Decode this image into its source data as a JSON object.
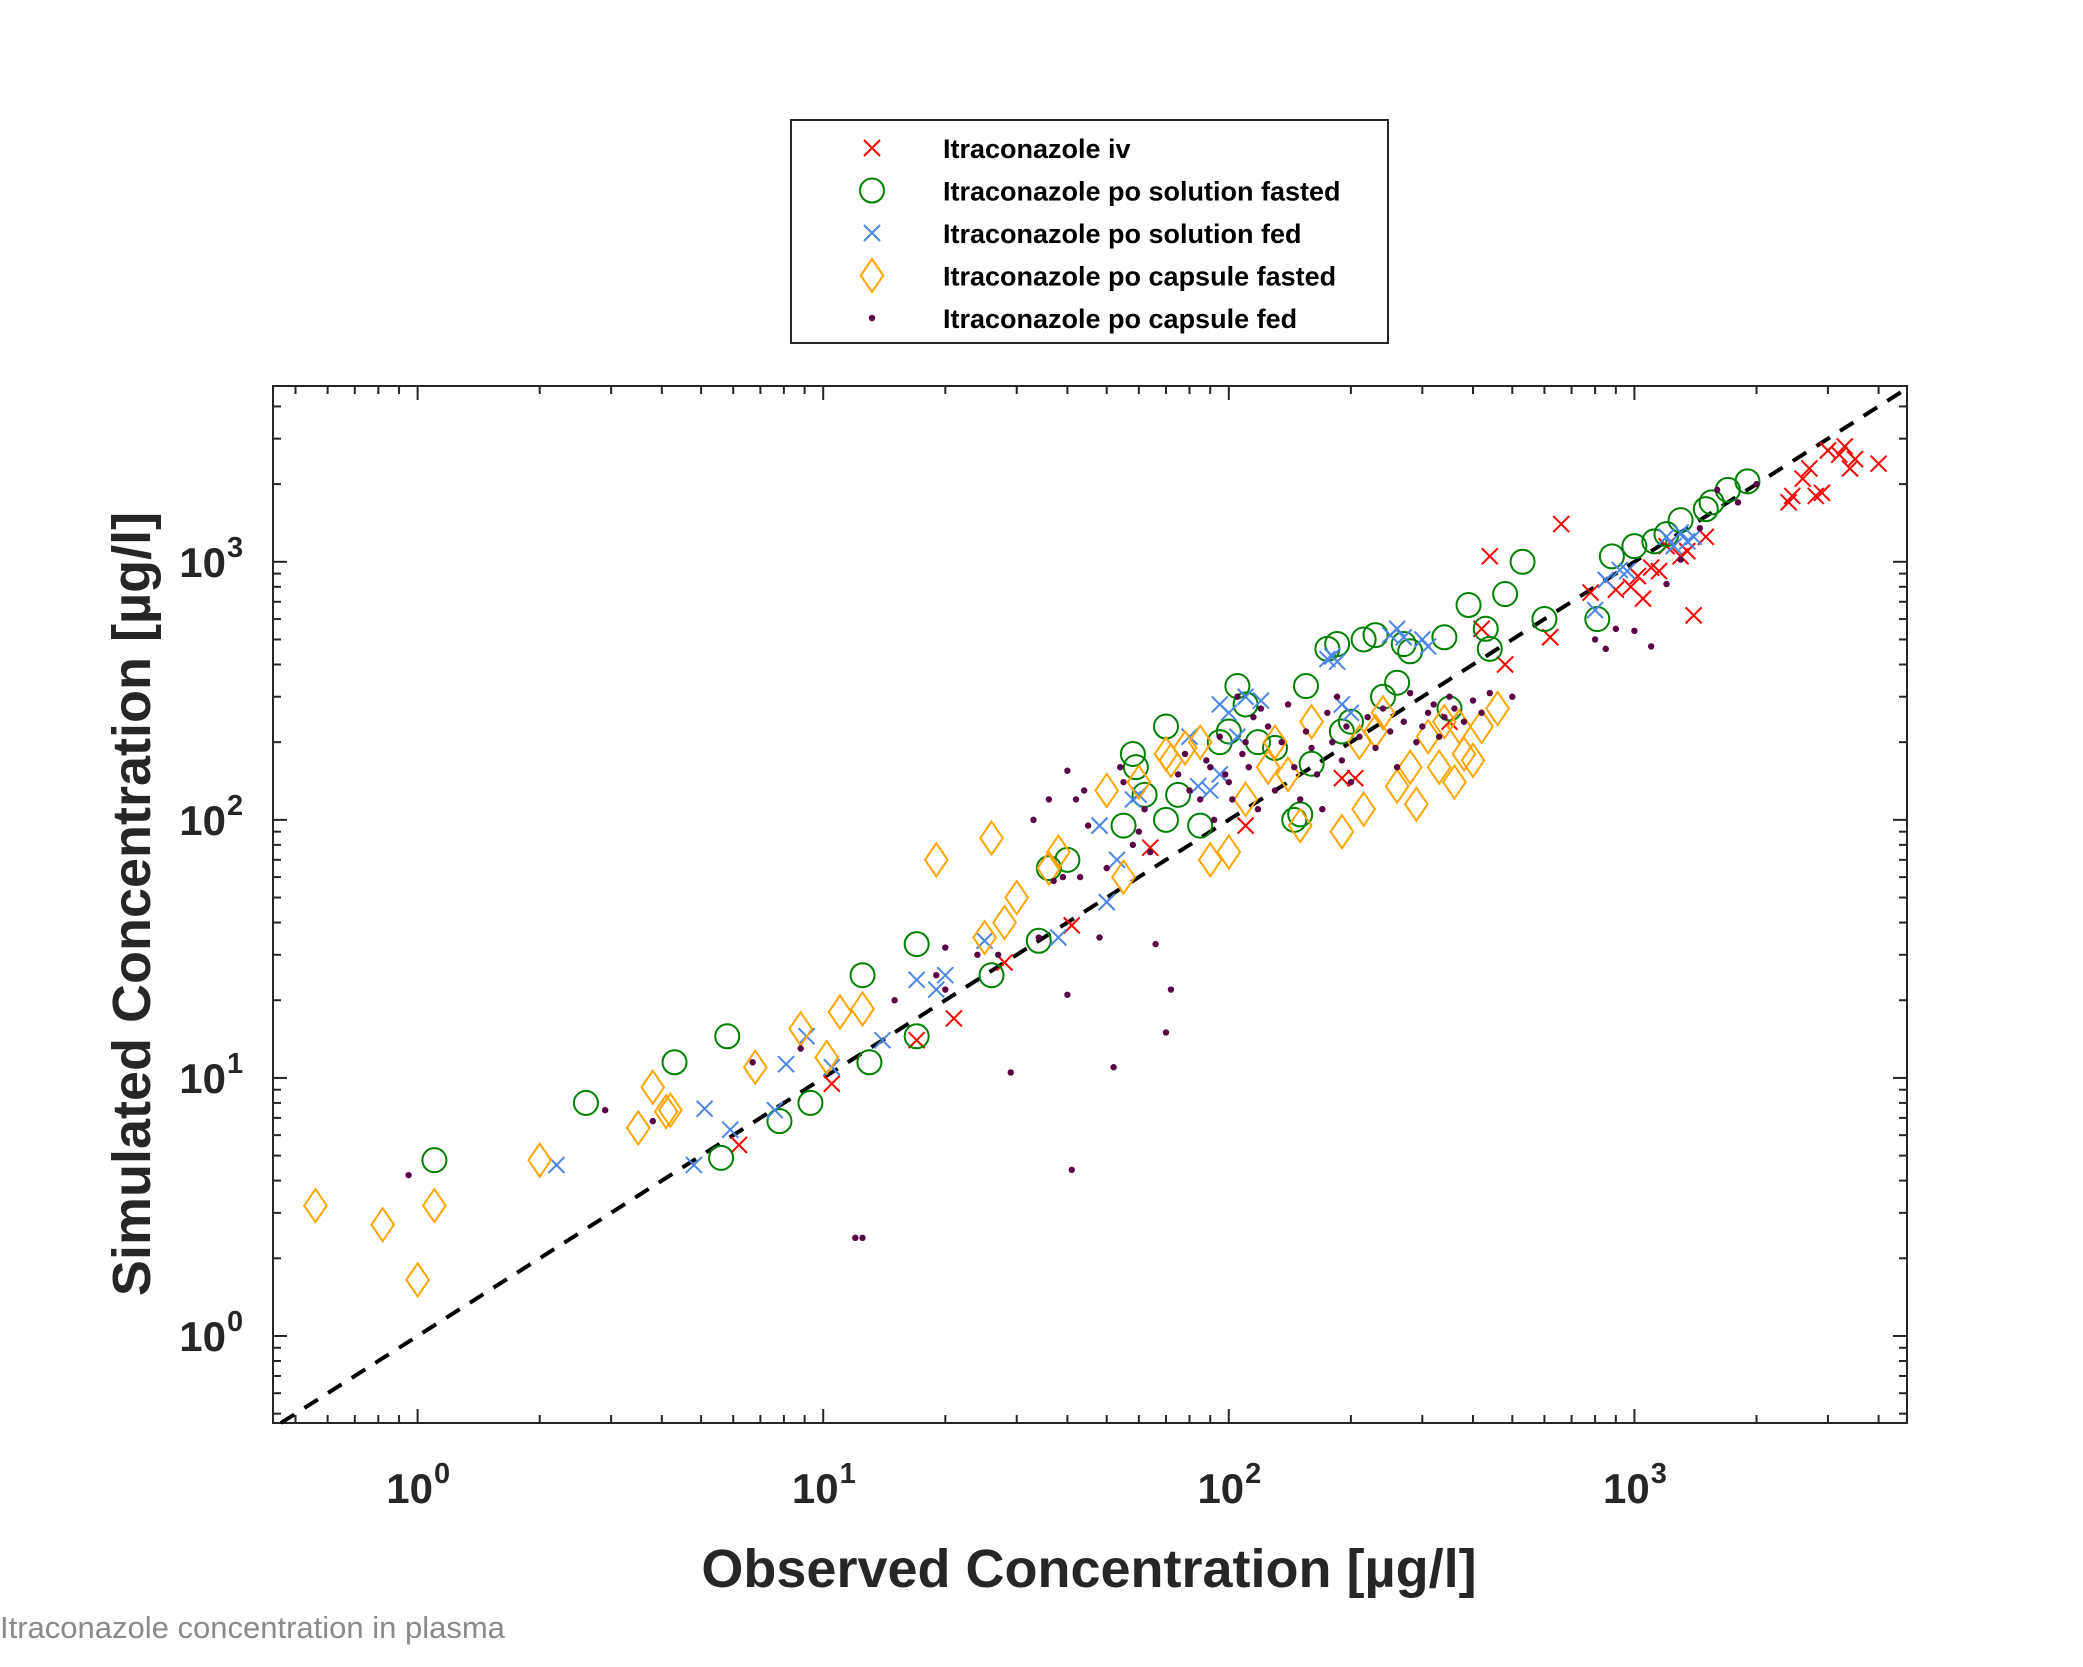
{
  "caption": "Itraconazole concentration in plasma",
  "chart_data": {
    "type": "scatter",
    "xlabel": "Observed Concentration [µg/l]",
    "ylabel": "Simulated Concentration [µg/l]",
    "x_scale": "log",
    "y_scale": "log",
    "xlim": [
      0.44,
      4700
    ],
    "ylim": [
      0.46,
      4800
    ],
    "x_ticks": [
      {
        "value": 1,
        "base": "10",
        "exp": "0"
      },
      {
        "value": 10,
        "base": "10",
        "exp": "1"
      },
      {
        "value": 100,
        "base": "10",
        "exp": "2"
      },
      {
        "value": 1000,
        "base": "10",
        "exp": "3"
      }
    ],
    "y_ticks": [
      {
        "value": 1,
        "base": "10",
        "exp": "0"
      },
      {
        "value": 10,
        "base": "10",
        "exp": "1"
      },
      {
        "value": 100,
        "base": "10",
        "exp": "2"
      },
      {
        "value": 1000,
        "base": "10",
        "exp": "3"
      }
    ],
    "grid": false,
    "legend_position": "top-center, outside plot",
    "reference_line": {
      "style": "dashed",
      "color": "#000000",
      "meaning": "y = x"
    },
    "series": [
      {
        "name": "Itraconazole iv",
        "marker": "x",
        "color": "#ff0000",
        "points": [
          [
            6.2,
            5.5
          ],
          [
            10.5,
            9.5
          ],
          [
            17,
            14
          ],
          [
            21,
            17
          ],
          [
            28,
            28
          ],
          [
            41,
            39
          ],
          [
            64,
            78
          ],
          [
            110,
            95
          ],
          [
            190,
            145
          ],
          [
            205,
            145
          ],
          [
            350,
            240
          ],
          [
            420,
            550
          ],
          [
            440,
            1050
          ],
          [
            480,
            400
          ],
          [
            620,
            510
          ],
          [
            660,
            1400
          ],
          [
            780,
            760
          ],
          [
            900,
            780
          ],
          [
            980,
            800
          ],
          [
            1020,
            880
          ],
          [
            1050,
            720
          ],
          [
            1100,
            950
          ],
          [
            1150,
            920
          ],
          [
            1200,
            1150
          ],
          [
            1300,
            1050
          ],
          [
            1350,
            1100
          ],
          [
            1400,
            620
          ],
          [
            1500,
            1250
          ],
          [
            2400,
            1700
          ],
          [
            2450,
            1800
          ],
          [
            2600,
            2100
          ],
          [
            2700,
            2300
          ],
          [
            2800,
            1800
          ],
          [
            2900,
            1850
          ],
          [
            3000,
            2700
          ],
          [
            3200,
            2600
          ],
          [
            3300,
            2800
          ],
          [
            3400,
            2300
          ],
          [
            3500,
            2500
          ],
          [
            4000,
            2400
          ]
        ]
      },
      {
        "name": "Itraconazole po solution fasted",
        "marker": "o",
        "color": "#008000",
        "points": [
          [
            1.1,
            4.8
          ],
          [
            2.6,
            8
          ],
          [
            4.3,
            11.5
          ],
          [
            5.6,
            4.9
          ],
          [
            5.8,
            14.5
          ],
          [
            7.8,
            6.8
          ],
          [
            9.3,
            8
          ],
          [
            12.5,
            25
          ],
          [
            13,
            11.5
          ],
          [
            17,
            33
          ],
          [
            17,
            14.5
          ],
          [
            26,
            25
          ],
          [
            34,
            34
          ],
          [
            36,
            65
          ],
          [
            40,
            70
          ],
          [
            55,
            95
          ],
          [
            58,
            180
          ],
          [
            59,
            160
          ],
          [
            62,
            125
          ],
          [
            70,
            100
          ],
          [
            70,
            230
          ],
          [
            75,
            125
          ],
          [
            85,
            95
          ],
          [
            95,
            200
          ],
          [
            100,
            220
          ],
          [
            105,
            330
          ],
          [
            110,
            280
          ],
          [
            118,
            200
          ],
          [
            130,
            190
          ],
          [
            145,
            100
          ],
          [
            150,
            105
          ],
          [
            155,
            330
          ],
          [
            160,
            165
          ],
          [
            175,
            460
          ],
          [
            185,
            480
          ],
          [
            190,
            220
          ],
          [
            200,
            240
          ],
          [
            215,
            500
          ],
          [
            230,
            520
          ],
          [
            240,
            300
          ],
          [
            260,
            340
          ],
          [
            270,
            480
          ],
          [
            280,
            450
          ],
          [
            340,
            510
          ],
          [
            350,
            270
          ],
          [
            390,
            680
          ],
          [
            430,
            550
          ],
          [
            440,
            460
          ],
          [
            480,
            750
          ],
          [
            530,
            1000
          ],
          [
            600,
            600
          ],
          [
            810,
            600
          ],
          [
            880,
            1050
          ],
          [
            1000,
            1150
          ],
          [
            1120,
            1200
          ],
          [
            1200,
            1280
          ],
          [
            1300,
            1450
          ],
          [
            1500,
            1600
          ],
          [
            1550,
            1700
          ],
          [
            1700,
            1900
          ],
          [
            1900,
            2050
          ]
        ]
      },
      {
        "name": "Itraconazole po solution fed",
        "marker": "x",
        "color": "#4a86e8",
        "points": [
          [
            2.2,
            4.6
          ],
          [
            4.8,
            4.6
          ],
          [
            5.1,
            7.6
          ],
          [
            5.9,
            6.3
          ],
          [
            7.6,
            7.5
          ],
          [
            8.1,
            11.3
          ],
          [
            9.1,
            14.5
          ],
          [
            10.5,
            11
          ],
          [
            14,
            14
          ],
          [
            17,
            24
          ],
          [
            19,
            22
          ],
          [
            20,
            25
          ],
          [
            25,
            34
          ],
          [
            38,
            35
          ],
          [
            48,
            95
          ],
          [
            50,
            48
          ],
          [
            53,
            70
          ],
          [
            58,
            120
          ],
          [
            60,
            125
          ],
          [
            80,
            210
          ],
          [
            84,
            135
          ],
          [
            90,
            130
          ],
          [
            95,
            150
          ],
          [
            95,
            280
          ],
          [
            100,
            260
          ],
          [
            105,
            210
          ],
          [
            110,
            300
          ],
          [
            120,
            290
          ],
          [
            175,
            420
          ],
          [
            180,
            430
          ],
          [
            185,
            410
          ],
          [
            190,
            280
          ],
          [
            200,
            260
          ],
          [
            250,
            520
          ],
          [
            260,
            550
          ],
          [
            270,
            510
          ],
          [
            300,
            500
          ],
          [
            310,
            470
          ],
          [
            800,
            650
          ],
          [
            850,
            850
          ],
          [
            920,
            930
          ],
          [
            960,
            920
          ],
          [
            1200,
            1250
          ],
          [
            1250,
            1150
          ],
          [
            1300,
            1300
          ],
          [
            1350,
            1200
          ],
          [
            1400,
            1250
          ]
        ]
      },
      {
        "name": "Itraconazole po capsule fasted",
        "marker": "diamond",
        "color": "#ffa500",
        "points": [
          [
            0.56,
            3.2
          ],
          [
            0.82,
            2.7
          ],
          [
            1.0,
            1.65
          ],
          [
            1.1,
            3.2
          ],
          [
            2.0,
            4.8
          ],
          [
            3.5,
            6.4
          ],
          [
            3.8,
            9.2
          ],
          [
            4.1,
            7.4
          ],
          [
            4.2,
            7.5
          ],
          [
            6.8,
            11
          ],
          [
            8.8,
            15.5
          ],
          [
            10.2,
            12
          ],
          [
            11,
            18
          ],
          [
            12.5,
            18.5
          ],
          [
            19,
            70
          ],
          [
            25,
            35
          ],
          [
            26,
            85
          ],
          [
            28,
            40
          ],
          [
            30,
            50
          ],
          [
            36,
            65
          ],
          [
            38,
            75
          ],
          [
            50,
            130
          ],
          [
            55,
            60
          ],
          [
            60,
            140
          ],
          [
            70,
            180
          ],
          [
            72,
            170
          ],
          [
            78,
            190
          ],
          [
            85,
            200
          ],
          [
            90,
            70
          ],
          [
            100,
            75
          ],
          [
            110,
            120
          ],
          [
            125,
            160
          ],
          [
            130,
            200
          ],
          [
            140,
            150
          ],
          [
            150,
            95
          ],
          [
            160,
            240
          ],
          [
            190,
            90
          ],
          [
            210,
            200
          ],
          [
            215,
            110
          ],
          [
            230,
            220
          ],
          [
            240,
            260
          ],
          [
            260,
            135
          ],
          [
            280,
            160
          ],
          [
            290,
            115
          ],
          [
            310,
            210
          ],
          [
            330,
            160
          ],
          [
            340,
            240
          ],
          [
            360,
            140
          ],
          [
            370,
            230
          ],
          [
            380,
            180
          ],
          [
            400,
            170
          ],
          [
            420,
            230
          ],
          [
            460,
            270
          ]
        ]
      },
      {
        "name": "Itraconazole po capsule fed",
        "marker": "dot",
        "color": "#5a0045",
        "points": [
          [
            0.95,
            4.2
          ],
          [
            2.9,
            7.5
          ],
          [
            3.8,
            6.8
          ],
          [
            6.7,
            11.5
          ],
          [
            8.8,
            13
          ],
          [
            12,
            2.4
          ],
          [
            12.5,
            2.4
          ],
          [
            15,
            20
          ],
          [
            19,
            25
          ],
          [
            20,
            22
          ],
          [
            20,
            32
          ],
          [
            24,
            30
          ],
          [
            27,
            30
          ],
          [
            29,
            10.5
          ],
          [
            33,
            100
          ],
          [
            34,
            35
          ],
          [
            36,
            120
          ],
          [
            37,
            58
          ],
          [
            39,
            60
          ],
          [
            40,
            155
          ],
          [
            40,
            21
          ],
          [
            41,
            4.4
          ],
          [
            42,
            120
          ],
          [
            43,
            60
          ],
          [
            44,
            130
          ],
          [
            45,
            95
          ],
          [
            48,
            35
          ],
          [
            50,
            65
          ],
          [
            52,
            11
          ],
          [
            54,
            160
          ],
          [
            55,
            140
          ],
          [
            58,
            80
          ],
          [
            60,
            90
          ],
          [
            62,
            110
          ],
          [
            64,
            75
          ],
          [
            66,
            33
          ],
          [
            70,
            15
          ],
          [
            72,
            22
          ],
          [
            75,
            150
          ],
          [
            78,
            180
          ],
          [
            80,
            130
          ],
          [
            85,
            120
          ],
          [
            88,
            170
          ],
          [
            90,
            160
          ],
          [
            92,
            100
          ],
          [
            95,
            210
          ],
          [
            98,
            150
          ],
          [
            100,
            140
          ],
          [
            102,
            120
          ],
          [
            105,
            300
          ],
          [
            108,
            180
          ],
          [
            110,
            200
          ],
          [
            112,
            160
          ],
          [
            115,
            250
          ],
          [
            118,
            110
          ],
          [
            120,
            270
          ],
          [
            125,
            230
          ],
          [
            130,
            130
          ],
          [
            135,
            200
          ],
          [
            140,
            280
          ],
          [
            145,
            160
          ],
          [
            150,
            120
          ],
          [
            155,
            220
          ],
          [
            160,
            190
          ],
          [
            165,
            150
          ],
          [
            170,
            110
          ],
          [
            175,
            260
          ],
          [
            180,
            200
          ],
          [
            185,
            300
          ],
          [
            190,
            170
          ],
          [
            195,
            230
          ],
          [
            200,
            140
          ],
          [
            210,
            210
          ],
          [
            220,
            250
          ],
          [
            230,
            190
          ],
          [
            240,
            270
          ],
          [
            250,
            220
          ],
          [
            260,
            160
          ],
          [
            270,
            240
          ],
          [
            280,
            310
          ],
          [
            290,
            200
          ],
          [
            300,
            230
          ],
          [
            310,
            260
          ],
          [
            320,
            280
          ],
          [
            330,
            210
          ],
          [
            340,
            250
          ],
          [
            350,
            300
          ],
          [
            360,
            270
          ],
          [
            380,
            240
          ],
          [
            400,
            290
          ],
          [
            420,
            260
          ],
          [
            440,
            310
          ],
          [
            500,
            300
          ],
          [
            800,
            500
          ],
          [
            850,
            460
          ],
          [
            900,
            550
          ],
          [
            1000,
            540
          ],
          [
            1100,
            470
          ],
          [
            1200,
            820
          ],
          [
            1300,
            1020
          ],
          [
            1450,
            1350
          ],
          [
            1600,
            1900
          ],
          [
            1800,
            1700
          ],
          [
            2000,
            2000
          ]
        ]
      }
    ]
  }
}
